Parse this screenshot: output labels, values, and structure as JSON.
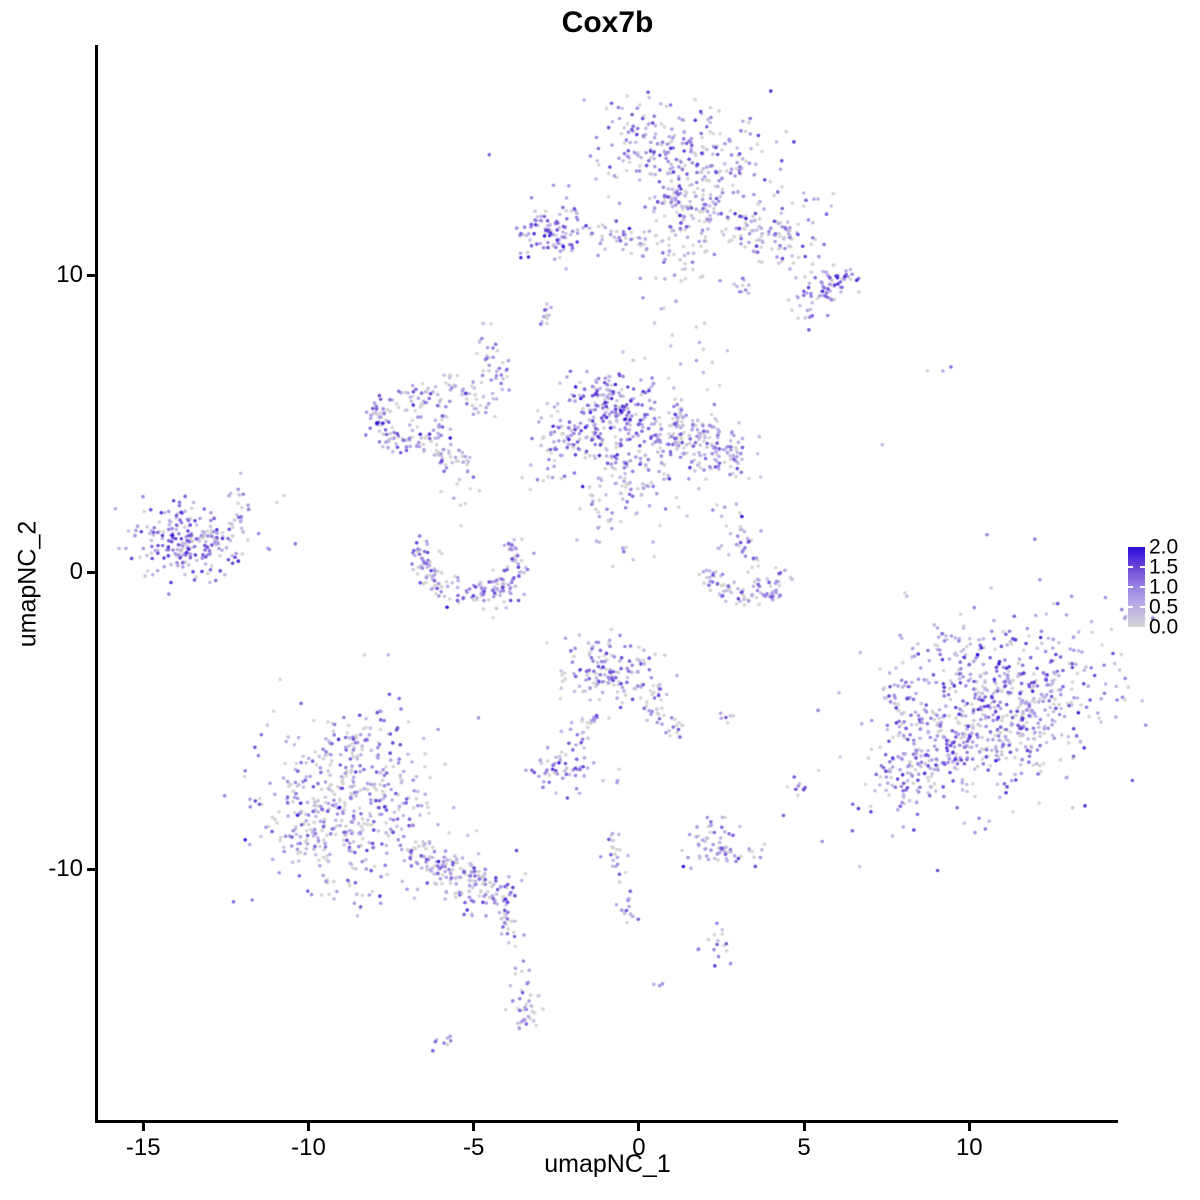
{
  "title": "Cox7b",
  "axes": {
    "x_label": "umapNC_1",
    "y_label": "umapNC_2",
    "x_ticks": [
      "-15",
      "-10",
      "-5",
      "0",
      "5",
      "10"
    ],
    "x_tick_values": [
      -15,
      -10,
      -5,
      0,
      5,
      10
    ],
    "y_ticks": [
      "-10",
      "0",
      "10"
    ],
    "y_tick_values": [
      -10,
      0,
      10
    ]
  },
  "legend": {
    "tick_labels": [
      "2.0",
      "1.5",
      "1.0",
      "0.5",
      "0.0"
    ],
    "tick_values": [
      2.0,
      1.5,
      1.0,
      0.5,
      0.0
    ],
    "min_value": 0.0,
    "max_value": 2.0
  },
  "colors": {
    "background": "#FFFFFF",
    "axis": "#000000",
    "text": "#000000",
    "scale_stops": [
      [
        0.0,
        "#D3D3D3"
      ],
      [
        0.25,
        "#BDB0E8"
      ],
      [
        0.5,
        "#9A83E1"
      ],
      [
        0.75,
        "#6A48D7"
      ],
      [
        1.0,
        "#2A0BDC"
      ]
    ]
  },
  "chart_data": {
    "type": "scatter",
    "title": "Cox7b",
    "xlabel": "umapNC_1",
    "ylabel": "umapNC_2",
    "xlim": [
      -16.4,
      14.5
    ],
    "ylim": [
      -18.5,
      17.75
    ],
    "grid": false,
    "legend_position": "right",
    "color_variable": "expression",
    "color_range": [
      0,
      2
    ],
    "point_radius_px": 1.8,
    "dark_outlier_prob": 0.012,
    "seed": 1337,
    "clusters": [
      {
        "type": "blob",
        "cx": 1.2,
        "cy": 14.1,
        "sx": 1.35,
        "sy": 0.85,
        "rot": -8,
        "n": 260,
        "p0": 0.22,
        "hi": 1.5
      },
      {
        "type": "blob",
        "cx": 1.7,
        "cy": 12.4,
        "sx": 0.55,
        "sy": 0.75,
        "rot": 0,
        "n": 70,
        "p0": 0.25,
        "hi": 1.4
      },
      {
        "type": "line",
        "x1": 2.6,
        "y1": 11.9,
        "x2": 4.9,
        "y2": 10.6,
        "jitter": 0.35,
        "n": 80,
        "p0": 0.3,
        "hi": 1.4
      },
      {
        "type": "blob",
        "cx": 5.75,
        "cy": 9.7,
        "sx": 0.45,
        "sy": 0.33,
        "rot": 0,
        "n": 65,
        "p0": 0.12,
        "hi": 1.6
      },
      {
        "type": "blob",
        "cx": 4.4,
        "cy": 11.9,
        "sx": 0.85,
        "sy": 0.6,
        "rot": 0,
        "n": 45,
        "p0": 0.4,
        "hi": 1.2
      },
      {
        "type": "blob",
        "cx": -2.5,
        "cy": 11.5,
        "sx": 0.55,
        "sy": 0.5,
        "rot": 0,
        "n": 95,
        "p0": 0.12,
        "hi": 1.7
      },
      {
        "type": "line",
        "x1": -1.6,
        "y1": 11.5,
        "x2": 0.5,
        "y2": 11.0,
        "jitter": 0.25,
        "n": 40,
        "p0": 0.3,
        "hi": 1.3
      },
      {
        "type": "blob",
        "cx": 1.3,
        "cy": 10.6,
        "sx": 0.8,
        "sy": 0.7,
        "rot": 0,
        "n": 45,
        "p0": 0.45,
        "hi": 1.0
      },
      {
        "type": "line",
        "x1": 0.8,
        "y1": 13.0,
        "x2": 1.5,
        "y2": 11.6,
        "jitter": 0.3,
        "n": 30,
        "p0": 0.3,
        "hi": 1.3
      },
      {
        "type": "blob",
        "cx": 3.1,
        "cy": 9.6,
        "sx": 0.22,
        "sy": 0.18,
        "rot": 0,
        "n": 10,
        "p0": 0.3,
        "hi": 1.2
      },
      {
        "type": "blob",
        "cx": 5.2,
        "cy": 8.7,
        "sx": 0.3,
        "sy": 0.25,
        "rot": 0,
        "n": 12,
        "p0": 0.3,
        "hi": 1.3
      },
      {
        "type": "line",
        "x1": -3.55,
        "y1": 11.3,
        "x2": -3.3,
        "y2": 11.35,
        "jitter": 0.07,
        "n": 4,
        "p0": 0.2,
        "hi": 1.0
      },
      {
        "type": "line",
        "x1": -3.0,
        "y1": 8.35,
        "x2": -2.6,
        "y2": 9.0,
        "jitter": 0.1,
        "n": 12,
        "p0": 0.25,
        "hi": 1.2
      },
      {
        "type": "blob",
        "cx": 1.1,
        "cy": 7.9,
        "sx": 0.6,
        "sy": 0.55,
        "rot": 0,
        "n": 7,
        "p0": 0.5,
        "hi": 0.9
      },
      {
        "type": "blob",
        "cx": -4.55,
        "cy": 7.3,
        "sx": 0.18,
        "sy": 0.42,
        "rot": 0,
        "n": 22,
        "p0": 0.2,
        "hi": 1.4
      },
      {
        "type": "ring",
        "cx": -6.9,
        "cy": 5.15,
        "rx": 1.0,
        "ry": 0.9,
        "w": 0.18,
        "a0": -20,
        "a1": 340,
        "n": 120,
        "p0": 0.25,
        "hi": 1.3
      },
      {
        "type": "line",
        "x1": -5.9,
        "y1": 6.6,
        "x2": -4.4,
        "y2": 5.4,
        "jitter": 0.2,
        "n": 40,
        "p0": 0.3,
        "hi": 1.2
      },
      {
        "type": "line",
        "x1": -4.35,
        "y1": 6.1,
        "x2": -4.05,
        "y2": 7.0,
        "jitter": 0.12,
        "n": 16,
        "p0": 0.3,
        "hi": 1.2
      },
      {
        "type": "line",
        "x1": -6.1,
        "y1": 4.0,
        "x2": -5.0,
        "y2": 3.5,
        "jitter": 0.25,
        "n": 35,
        "p0": 0.3,
        "hi": 1.2
      },
      {
        "type": "blob",
        "cx": -6.7,
        "cy": 5.1,
        "sx": 0.5,
        "sy": 0.45,
        "rot": 0,
        "n": 22,
        "p0": 0.4,
        "hi": 1.1
      },
      {
        "type": "blob",
        "cx": -5.6,
        "cy": 2.6,
        "sx": 0.5,
        "sy": 0.5,
        "rot": 0,
        "n": 10,
        "p0": 0.5,
        "hi": 1.0
      },
      {
        "type": "blob",
        "cx": -0.9,
        "cy": 5.2,
        "sx": 0.85,
        "sy": 0.8,
        "rot": 0,
        "n": 270,
        "p0": 0.2,
        "hi": 1.6
      },
      {
        "type": "blob",
        "cx": 1.4,
        "cy": 4.7,
        "sx": 0.85,
        "sy": 0.6,
        "rot": -10,
        "n": 150,
        "p0": 0.25,
        "hi": 1.4
      },
      {
        "type": "blob",
        "cx": 2.55,
        "cy": 3.95,
        "sx": 0.5,
        "sy": 0.4,
        "rot": -20,
        "n": 60,
        "p0": 0.3,
        "hi": 1.3
      },
      {
        "type": "blob",
        "cx": -2.4,
        "cy": 4.4,
        "sx": 0.4,
        "sy": 0.5,
        "rot": 0,
        "n": 30,
        "p0": 0.4,
        "hi": 1.1
      },
      {
        "type": "line",
        "x1": -0.9,
        "y1": 3.9,
        "x2": -0.2,
        "y2": 2.5,
        "jitter": 0.3,
        "n": 35,
        "p0": 0.35,
        "hi": 1.2
      },
      {
        "type": "blob",
        "cx": -2.9,
        "cy": 3.2,
        "sx": 0.4,
        "sy": 0.35,
        "rot": 0,
        "n": 12,
        "p0": 0.5,
        "hi": 0.9
      },
      {
        "type": "line",
        "x1": -1.7,
        "y1": 2.6,
        "x2": -0.8,
        "y2": 1.6,
        "jitter": 0.35,
        "n": 25,
        "p0": 0.4,
        "hi": 1.1
      },
      {
        "type": "blob",
        "cx": 0.3,
        "cy": 2.9,
        "sx": 0.5,
        "sy": 0.6,
        "rot": 0,
        "n": 18,
        "p0": 0.4,
        "hi": 1.0
      },
      {
        "type": "blob",
        "cx": 1.2,
        "cy": 7.2,
        "sx": 0.7,
        "sy": 0.6,
        "rot": 0,
        "n": 8,
        "p0": 0.4,
        "hi": 1.1
      },
      {
        "type": "blob",
        "cx": 2.0,
        "cy": 2.0,
        "sx": 0.5,
        "sy": 0.45,
        "rot": 0,
        "n": 10,
        "p0": 0.55,
        "hi": 0.9
      },
      {
        "type": "blob",
        "cx": -0.3,
        "cy": 1.2,
        "sx": 0.5,
        "sy": 0.55,
        "rot": 0,
        "n": 12,
        "p0": 0.45,
        "hi": 1.0
      },
      {
        "type": "blob",
        "cx": -13.75,
        "cy": 1.05,
        "sx": 0.8,
        "sy": 0.62,
        "rot": 0,
        "n": 210,
        "p0": 0.15,
        "hi": 1.5
      },
      {
        "type": "blob",
        "cx": -12.3,
        "cy": 1.4,
        "sx": 0.5,
        "sy": 0.55,
        "rot": 0,
        "n": 25,
        "p0": 0.3,
        "hi": 1.2
      },
      {
        "type": "blob",
        "cx": -11.5,
        "cy": 1.5,
        "sx": 0.45,
        "sy": 0.75,
        "rot": 0,
        "n": 8,
        "p0": 0.4,
        "hi": 1.0
      },
      {
        "type": "blob",
        "cx": -12.2,
        "cy": 2.55,
        "sx": 0.15,
        "sy": 0.12,
        "rot": 0,
        "n": 2,
        "p0": 0.4,
        "hi": 1.0
      },
      {
        "type": "blob",
        "cx": -10.5,
        "cy": 0.9,
        "sx": 0.1,
        "sy": 0.1,
        "rot": 0,
        "n": 1,
        "p0": 0.5,
        "hi": 1.0
      },
      {
        "type": "ring",
        "cx": -5.15,
        "cy": 0.5,
        "rx": 1.45,
        "ry": 1.2,
        "w": 0.22,
        "a0": 150,
        "a1": 390,
        "n": 150,
        "p0": 0.28,
        "hi": 1.4
      },
      {
        "type": "blob",
        "cx": -4.4,
        "cy": -0.75,
        "sx": 0.55,
        "sy": 0.3,
        "rot": 10,
        "n": 30,
        "p0": 0.25,
        "hi": 1.4
      },
      {
        "type": "line",
        "x1": 3.1,
        "y1": 1.6,
        "x2": 3.4,
        "y2": 0.1,
        "jitter": 0.18,
        "n": 24,
        "p0": 0.35,
        "hi": 1.3
      },
      {
        "type": "blob",
        "cx": 2.6,
        "cy": 1.0,
        "sx": 0.3,
        "sy": 0.4,
        "rot": 0,
        "n": 8,
        "p0": 0.7,
        "hi": 0.6
      },
      {
        "type": "ring",
        "cx": 3.25,
        "cy": 0.35,
        "rx": 1.3,
        "ry": 1.1,
        "w": 0.2,
        "a0": 195,
        "a1": 345,
        "n": 85,
        "p0": 0.35,
        "hi": 1.3
      },
      {
        "type": "blob",
        "cx": -0.75,
        "cy": -3.45,
        "sx": 0.85,
        "sy": 0.6,
        "rot": -20,
        "n": 150,
        "p0": 0.35,
        "hi": 1.4
      },
      {
        "type": "line",
        "x1": 0.4,
        "y1": -4.3,
        "x2": 1.0,
        "y2": -5.3,
        "jitter": 0.25,
        "n": 30,
        "p0": 0.4,
        "hi": 1.2
      },
      {
        "type": "line",
        "x1": -1.2,
        "y1": -4.6,
        "x2": -1.9,
        "y2": -5.8,
        "jitter": 0.15,
        "n": 16,
        "p0": 0.35,
        "hi": 1.3
      },
      {
        "type": "blob",
        "cx": -2.3,
        "cy": -6.7,
        "sx": 0.5,
        "sy": 0.35,
        "rot": -10,
        "n": 55,
        "p0": 0.12,
        "hi": 1.6
      },
      {
        "type": "blob",
        "cx": -0.8,
        "cy": -7.1,
        "sx": 0.15,
        "sy": 0.15,
        "rot": 0,
        "n": 3,
        "p0": 0.3,
        "hi": 1.0
      },
      {
        "type": "blob",
        "cx": 2.95,
        "cy": -4.9,
        "sx": 0.3,
        "sy": 0.15,
        "rot": 0,
        "n": 6,
        "p0": 0.3,
        "hi": 1.2
      },
      {
        "type": "blob",
        "cx": 4.8,
        "cy": -7.15,
        "sx": 0.25,
        "sy": 0.18,
        "rot": 0,
        "n": 8,
        "p0": 0.3,
        "hi": 1.3
      },
      {
        "type": "blob",
        "cx": -2.0,
        "cy": -5.3,
        "sx": 0.35,
        "sy": 0.3,
        "rot": 0,
        "n": 6,
        "p0": 0.4,
        "hi": 1.0
      },
      {
        "type": "blob",
        "cx": -8.75,
        "cy": -7.9,
        "sx": 1.35,
        "sy": 1.45,
        "rot": 0,
        "n": 430,
        "p0": 0.3,
        "hi": 1.35
      },
      {
        "type": "blob",
        "cx": -8.6,
        "cy": -5.85,
        "sx": 0.75,
        "sy": 0.55,
        "rot": 0,
        "n": 60,
        "p0": 0.3,
        "hi": 1.3
      },
      {
        "type": "blob",
        "cx": -10.2,
        "cy": -8.6,
        "sx": 0.5,
        "sy": 0.7,
        "rot": 0,
        "n": 40,
        "p0": 0.3,
        "hi": 1.2
      },
      {
        "type": "line",
        "x1": -7.0,
        "y1": -9.3,
        "x2": -5.0,
        "y2": -10.4,
        "jitter": 0.35,
        "n": 110,
        "p0": 0.25,
        "hi": 1.4
      },
      {
        "type": "blob",
        "cx": -4.55,
        "cy": -10.7,
        "sx": 0.5,
        "sy": 0.45,
        "rot": 0,
        "n": 70,
        "p0": 0.2,
        "hi": 1.5
      },
      {
        "type": "line",
        "x1": -4.2,
        "y1": -11.4,
        "x2": -3.8,
        "y2": -12.4,
        "jitter": 0.15,
        "n": 18,
        "p0": 0.4,
        "hi": 1.2
      },
      {
        "type": "line",
        "x1": -3.8,
        "y1": -12.9,
        "x2": -3.3,
        "y2": -14.9,
        "jitter": 0.18,
        "n": 22,
        "p0": 0.35,
        "hi": 1.3
      },
      {
        "type": "blob",
        "cx": -3.4,
        "cy": -15.0,
        "sx": 0.25,
        "sy": 0.3,
        "rot": 0,
        "n": 18,
        "p0": 0.3,
        "hi": 1.3
      },
      {
        "type": "line",
        "x1": -6.15,
        "y1": -16.0,
        "x2": -5.75,
        "y2": -15.65,
        "jitter": 0.1,
        "n": 8,
        "p0": 0.25,
        "hi": 1.2
      },
      {
        "type": "line",
        "x1": -0.9,
        "y1": -8.85,
        "x2": -0.5,
        "y2": -10.3,
        "jitter": 0.14,
        "n": 22,
        "p0": 0.35,
        "hi": 1.4
      },
      {
        "type": "line",
        "x1": -0.45,
        "y1": -10.6,
        "x2": -0.2,
        "y2": -12.0,
        "jitter": 0.12,
        "n": 14,
        "p0": 0.4,
        "hi": 1.3
      },
      {
        "type": "blob",
        "cx": 2.4,
        "cy": -9.35,
        "sx": 0.65,
        "sy": 0.35,
        "rot": 0,
        "n": 60,
        "p0": 0.2,
        "hi": 1.4
      },
      {
        "type": "line",
        "x1": 2.0,
        "y1": -8.3,
        "x2": 2.4,
        "y2": -8.8,
        "jitter": 0.12,
        "n": 8,
        "p0": 0.4,
        "hi": 1.1
      },
      {
        "type": "blob",
        "cx": 2.35,
        "cy": -12.5,
        "sx": 0.3,
        "sy": 0.35,
        "rot": 0,
        "n": 16,
        "p0": 0.25,
        "hi": 1.4
      },
      {
        "type": "blob",
        "cx": 0.6,
        "cy": -13.85,
        "sx": 0.12,
        "sy": 0.12,
        "rot": 0,
        "n": 3,
        "p0": 0.1,
        "hi": 1.4
      },
      {
        "type": "blob",
        "cx": 2.5,
        "cy": -8.25,
        "sx": 0.1,
        "sy": 0.1,
        "rot": 0,
        "n": 2,
        "p0": 0.5,
        "hi": 0.8
      },
      {
        "type": "blob",
        "cx": 10.6,
        "cy": -4.85,
        "sx": 2.0,
        "sy": 1.3,
        "rot": 38,
        "n": 650,
        "p0": 0.22,
        "hi": 1.5
      },
      {
        "type": "blob",
        "cx": 8.5,
        "cy": -6.4,
        "sx": 0.55,
        "sy": 0.75,
        "rot": 0,
        "n": 90,
        "p0": 0.18,
        "hi": 1.5
      },
      {
        "type": "blob",
        "cx": 12.3,
        "cy": -4.2,
        "sx": 0.7,
        "sy": 0.8,
        "rot": 0,
        "n": 60,
        "p0": 0.35,
        "hi": 1.3
      },
      {
        "type": "blob",
        "cx": 9.6,
        "cy": -2.3,
        "sx": 0.5,
        "sy": 0.4,
        "rot": 0,
        "n": 25,
        "p0": 0.4,
        "hi": 1.2
      },
      {
        "type": "blob",
        "cx": 8.2,
        "cy": -4.2,
        "sx": 0.4,
        "sy": 0.9,
        "rot": 0,
        "n": 40,
        "p0": 0.25,
        "hi": 1.4
      },
      {
        "type": "blob",
        "cx": 8.1,
        "cy": -0.9,
        "sx": 0.15,
        "sy": 0.12,
        "rot": 0,
        "n": 2,
        "p0": 0.5,
        "hi": 1.0
      },
      {
        "type": "blob",
        "cx": 9.4,
        "cy": 6.85,
        "sx": 0.25,
        "sy": 0.15,
        "rot": 0,
        "n": 3,
        "p0": 0.3,
        "hi": 1.3
      },
      {
        "type": "blob",
        "cx": 7.4,
        "cy": 4.3,
        "sx": 0.1,
        "sy": 0.1,
        "rot": 0,
        "n": 1,
        "p0": 0.2,
        "hi": 1.2
      }
    ]
  }
}
